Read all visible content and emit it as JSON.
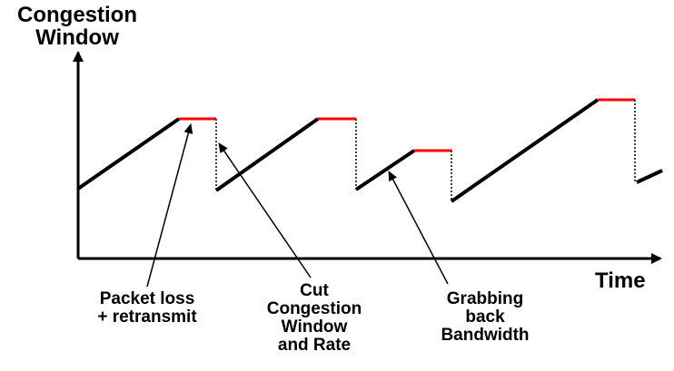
{
  "axes": {
    "y_label": "Congestion\nWindow",
    "x_label": "Time"
  },
  "annotations": {
    "packet_loss": "Packet loss\n+ retransmit",
    "cut_window": "Cut\nCongestion\nWindow\nand Rate",
    "grab_bandwidth": "Grabbing\nback\nBandwidth"
  },
  "colors": {
    "line": "#000000",
    "loss_plateau": "#ff0000",
    "drop": "#000000"
  },
  "icons": {
    "axis_arrows": "arrowhead",
    "callout_arrows": "arrowhead"
  }
}
